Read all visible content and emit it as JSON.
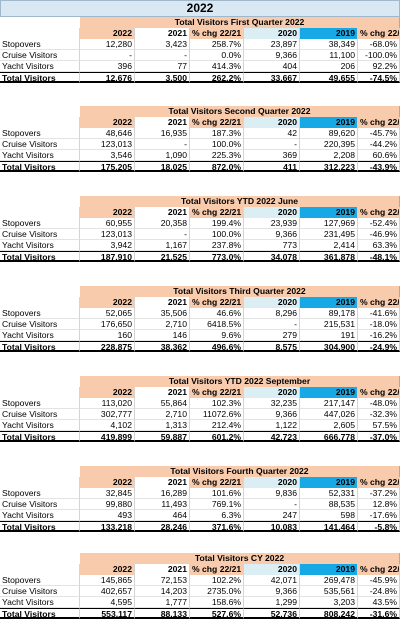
{
  "title": "2022",
  "headers": [
    "2022",
    "2021",
    "% chg 22/21",
    "2020",
    "2019",
    "% chg 22/19"
  ],
  "sections": [
    {
      "title": "Total Visitors First Quarter 2022",
      "rows": [
        {
          "label": "Stopovers",
          "values": [
            "12,280",
            "3,423",
            "258.7%",
            "23,897",
            "38,349",
            "-68.0%"
          ]
        },
        {
          "label": "Cruise Visitors",
          "values": [
            "-",
            "-",
            "0.0%",
            "9,366",
            "11,100",
            "-100.0%"
          ]
        },
        {
          "label": "Yacht Visitors",
          "values": [
            "396",
            "77",
            "414.3%",
            "404",
            "206",
            "92.2%"
          ]
        }
      ],
      "total": {
        "label": "Total Visitors",
        "values": [
          "12,676",
          "3,500",
          "262.2%",
          "33,667",
          "49,655",
          "-74.5%"
        ]
      }
    },
    {
      "title": "Total Visitors Second Quarter 2022",
      "rows": [
        {
          "label": "Stopovers",
          "values": [
            "48,646",
            "16,935",
            "187.3%",
            "42",
            "89,620",
            "-45.7%"
          ]
        },
        {
          "label": "Cruise Visitors",
          "values": [
            "123,013",
            "-",
            "100.0%",
            "-",
            "220,395",
            "-44.2%"
          ]
        },
        {
          "label": "Yacht Visitors",
          "values": [
            "3,546",
            "1,090",
            "225.3%",
            "369",
            "2,208",
            "60.6%"
          ]
        }
      ],
      "total": {
        "label": "Total Visitors",
        "values": [
          "175,205",
          "18,025",
          "872.0%",
          "411",
          "312,223",
          "-43.9%"
        ]
      }
    },
    {
      "title": "Total Visitors YTD 2022 June",
      "rows": [
        {
          "label": "Stopovers",
          "values": [
            "60,955",
            "20,358",
            "199.4%",
            "23,939",
            "127,969",
            "-52.4%"
          ]
        },
        {
          "label": "Cruise Visitors",
          "values": [
            "123,013",
            "-",
            "100.0%",
            "9,366",
            "231,495",
            "-46.9%"
          ]
        },
        {
          "label": "Yacht Visitors",
          "values": [
            "3,942",
            "1,167",
            "237.8%",
            "773",
            "2,414",
            "63.3%"
          ]
        }
      ],
      "total": {
        "label": "Total Visitors",
        "values": [
          "187,910",
          "21,525",
          "773.0%",
          "34,078",
          "361,878",
          "-48.1%"
        ]
      }
    },
    {
      "title": "Total Visitors Third Quarter 2022",
      "rows": [
        {
          "label": "Stopovers",
          "values": [
            "52,065",
            "35,506",
            "46.6%",
            "8,296",
            "89,178",
            "-41.6%"
          ]
        },
        {
          "label": "Cruise Visitors",
          "values": [
            "176,650",
            "2,710",
            "6418.5%",
            "-",
            "215,531",
            "-18.0%"
          ]
        },
        {
          "label": "Yacht Visitors",
          "values": [
            "160",
            "146",
            "9.6%",
            "279",
            "191",
            "-16.2%"
          ]
        }
      ],
      "total": {
        "label": "Total Visitors",
        "values": [
          "228,875",
          "38,362",
          "496.6%",
          "8,575",
          "304,900",
          "-24.9%"
        ]
      }
    },
    {
      "title": "Total Visitors YTD 2022 September",
      "rows": [
        {
          "label": "Stopovers",
          "values": [
            "113,020",
            "55,864",
            "102.3%",
            "32,235",
            "217,147",
            "-48.0%"
          ]
        },
        {
          "label": "Cruise Visitors",
          "values": [
            "302,777",
            "2,710",
            "11072.6%",
            "9,366",
            "447,026",
            "-32.3%"
          ]
        },
        {
          "label": "Yacht Visitors",
          "values": [
            "4,102",
            "1,313",
            "212.4%",
            "1,122",
            "2,605",
            "57.5%"
          ]
        }
      ],
      "total": {
        "label": "Total Visitors",
        "values": [
          "419,899",
          "59,887",
          "601.2%",
          "42,723",
          "666,778",
          "-37.0%"
        ]
      }
    },
    {
      "title": "Total Visitors Fourth Quarter 2022",
      "rows": [
        {
          "label": "Stopovers",
          "values": [
            "32,845",
            "16,289",
            "101.6%",
            "9,836",
            "52,331",
            "-37.2%"
          ]
        },
        {
          "label": "Cruise Visitors",
          "values": [
            "99,880",
            "11,493",
            "769.1%",
            "-",
            "88,535",
            "12.8%"
          ]
        },
        {
          "label": "Yacht Visitors",
          "values": [
            "493",
            "464",
            "6.3%",
            "247",
            "598",
            "-17.6%"
          ]
        }
      ],
      "total": {
        "label": "Total Visitors",
        "values": [
          "133,218",
          "28,246",
          "371.6%",
          "10,083",
          "141,464",
          "-5.8%"
        ]
      }
    },
    {
      "title": "Total Visitors CY 2022",
      "rows": [
        {
          "label": "Stopovers",
          "values": [
            "145,865",
            "72,153",
            "102.2%",
            "42,071",
            "269,478",
            "-45.9%"
          ]
        },
        {
          "label": "Cruise Visitors",
          "values": [
            "402,657",
            "14,203",
            "2735.0%",
            "9,366",
            "535,561",
            "-24.8%"
          ]
        },
        {
          "label": "Yacht Visitors",
          "values": [
            "4,595",
            "1,777",
            "158.6%",
            "1,299",
            "3,203",
            "43.5%"
          ]
        }
      ],
      "total": {
        "label": "Total Visitors",
        "values": [
          "553,117",
          "88,133",
          "527.6%",
          "52,736",
          "808,242",
          "-31.6%"
        ]
      }
    }
  ]
}
